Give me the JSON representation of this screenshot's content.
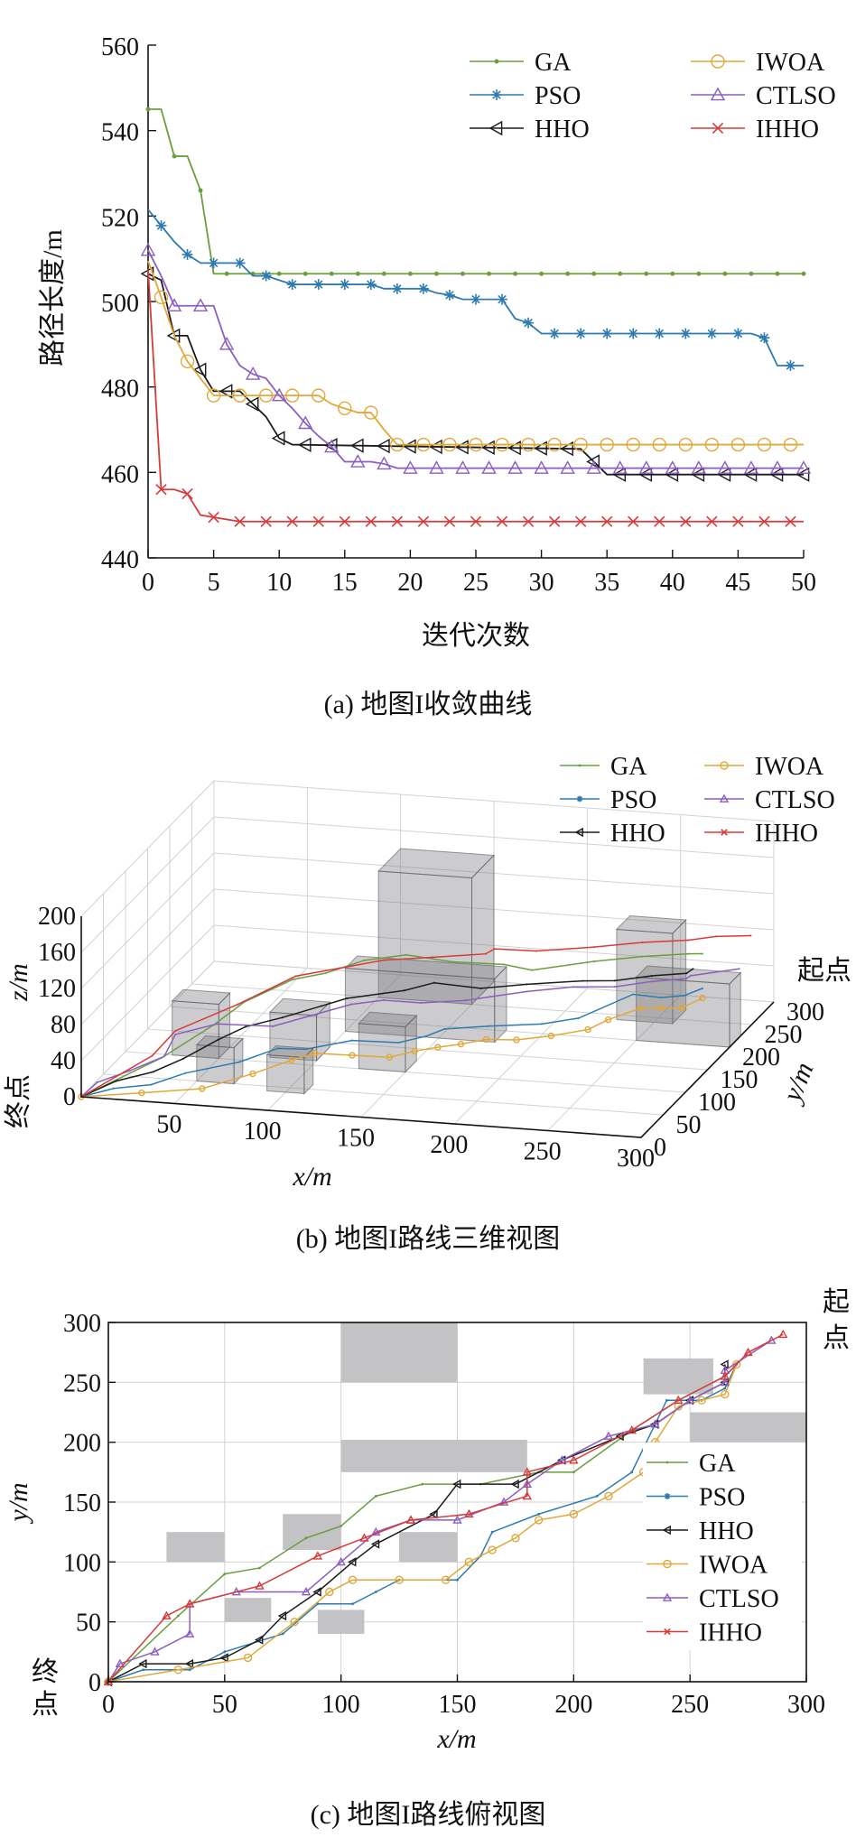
{
  "legend": {
    "labels": [
      "GA",
      "PSO",
      "HHO",
      "IWOA",
      "CTLSO",
      "IHHO"
    ],
    "colors": [
      "#6a9e3f",
      "#2e7bb0",
      "#1c1c1c",
      "#e0a83a",
      "#8b5fbf",
      "#d83a3a"
    ],
    "markers": [
      "dot",
      "asterisk",
      "triangle-left",
      "circle",
      "triangle-up",
      "cross"
    ]
  },
  "captions": {
    "a": "(a) 地图I收敛曲线",
    "b": "(b) 地图I路线三维视图",
    "c": "(c) 地图I路线俯视图"
  },
  "annotations": {
    "start": "起点",
    "end": "终点"
  },
  "chart_data": [
    {
      "type": "line",
      "ylabel": "路径长度/m",
      "xlabel": "迭代次数",
      "xlim": [
        0,
        50
      ],
      "ylim": [
        440,
        560
      ],
      "xticks": [
        0,
        5,
        10,
        15,
        20,
        25,
        30,
        35,
        40,
        45,
        50
      ],
      "yticks": [
        440,
        460,
        480,
        500,
        520,
        540,
        560
      ],
      "grid": false,
      "legend_position": "top-right",
      "series": [
        {
          "name": "GA",
          "x": [
            0,
            1,
            2,
            3,
            4,
            5,
            50
          ],
          "y": [
            545,
            545,
            534,
            534,
            526,
            506.5,
            506.5
          ]
        },
        {
          "name": "PSO",
          "x": [
            0,
            2,
            3,
            4,
            5,
            7,
            8,
            9,
            10,
            11,
            13,
            15,
            17,
            18,
            19,
            21,
            22,
            23,
            24,
            27,
            28,
            29,
            30,
            31,
            46,
            47,
            48,
            49,
            50
          ],
          "y": [
            521.5,
            514,
            511,
            509,
            509,
            509,
            506,
            506,
            505,
            504,
            504,
            504,
            504,
            503,
            503,
            503,
            502,
            501.5,
            500.5,
            500.5,
            496,
            495,
            492.5,
            492.5,
            492.5,
            491.5,
            485,
            485,
            485
          ]
        },
        {
          "name": "HHO",
          "x": [
            0,
            1,
            2,
            3,
            4,
            5,
            7,
            8,
            9,
            10,
            11,
            33,
            34,
            35,
            50
          ],
          "y": [
            506.5,
            505,
            492,
            492,
            484,
            479,
            479,
            476,
            473,
            468,
            466.5,
            465.5,
            462.5,
            459.5,
            459.5
          ]
        },
        {
          "name": "IWOA",
          "x": [
            0,
            1,
            2,
            3,
            4,
            5,
            13,
            14,
            15,
            16,
            17,
            18,
            19,
            50
          ],
          "y": [
            509.5,
            501,
            492,
            486,
            482,
            478,
            478,
            476,
            475,
            474,
            474,
            470,
            466.5,
            466.5
          ]
        },
        {
          "name": "CTLSO",
          "x": [
            0,
            1,
            2,
            3,
            4,
            5,
            6,
            7,
            8,
            9,
            10,
            11,
            12,
            13,
            14,
            15,
            17,
            18,
            19,
            20,
            50
          ],
          "y": [
            512,
            506,
            499,
            499,
            499,
            499,
            490,
            485,
            483,
            482,
            478,
            475,
            471.5,
            468.5,
            466,
            462.5,
            462.5,
            462,
            461,
            461,
            461
          ]
        },
        {
          "name": "IHHO",
          "x": [
            0,
            1,
            2,
            3,
            4,
            5,
            7,
            50
          ],
          "y": [
            507.5,
            456,
            456,
            455,
            450,
            449.5,
            448.5,
            448.5
          ]
        }
      ]
    },
    {
      "type": "line",
      "xlabel": "x/m",
      "ylabel": "y/m",
      "zlabel": "z/m",
      "xticks": [
        50,
        100,
        150,
        200,
        250,
        300
      ],
      "yticks": [
        0,
        50,
        100,
        150,
        200,
        250,
        300
      ],
      "zticks": [
        0,
        40,
        80,
        120,
        160,
        200
      ],
      "grid": true,
      "legend_position": "top-right"
    },
    {
      "type": "line",
      "xlabel": "x/m",
      "ylabel": "y/m",
      "xlim": [
        0,
        300
      ],
      "ylim": [
        0,
        300
      ],
      "xticks": [
        0,
        50,
        100,
        150,
        200,
        250,
        300
      ],
      "yticks": [
        0,
        50,
        100,
        150,
        200,
        250,
        300
      ],
      "grid": true,
      "legend_position": "right",
      "obstacles": [
        [
          100,
          250,
          150,
          300
        ],
        [
          230,
          240,
          260,
          270
        ],
        [
          250,
          200,
          300,
          225
        ],
        [
          100,
          175,
          180,
          202
        ],
        [
          25,
          100,
          50,
          125
        ],
        [
          75,
          110,
          100,
          140
        ],
        [
          125,
          100,
          150,
          125
        ],
        [
          50,
          50,
          70,
          70
        ],
        [
          90,
          40,
          110,
          60
        ]
      ],
      "series": [
        {
          "name": "GA",
          "points": [
            [
              0,
              0
            ],
            [
              30,
              55
            ],
            [
              50,
              90
            ],
            [
              65,
              95
            ],
            [
              85,
              120
            ],
            [
              100,
              130
            ],
            [
              115,
              155
            ],
            [
              135,
              165
            ],
            [
              160,
              165
            ],
            [
              185,
              175
            ],
            [
              200,
              175
            ],
            [
              225,
              210
            ],
            [
              245,
              235
            ],
            [
              265,
              255
            ],
            [
              270,
              265
            ]
          ]
        },
        {
          "name": "PSO",
          "points": [
            [
              0,
              0
            ],
            [
              15,
              10
            ],
            [
              35,
              10
            ],
            [
              50,
              25
            ],
            [
              75,
              40
            ],
            [
              90,
              65
            ],
            [
              105,
              65
            ],
            [
              115,
              75
            ],
            [
              125,
              85
            ],
            [
              150,
              85
            ],
            [
              160,
              105
            ],
            [
              165,
              125
            ],
            [
              185,
              140
            ],
            [
              210,
              155
            ],
            [
              225,
              175
            ],
            [
              240,
              235
            ],
            [
              255,
              235
            ],
            [
              265,
              245
            ],
            [
              270,
              265
            ]
          ]
        },
        {
          "name": "HHO",
          "points": [
            [
              0,
              0
            ],
            [
              15,
              15
            ],
            [
              35,
              15
            ],
            [
              50,
              20
            ],
            [
              65,
              35
            ],
            [
              75,
              55
            ],
            [
              90,
              75
            ],
            [
              105,
              100
            ],
            [
              115,
              115
            ],
            [
              140,
              140
            ],
            [
              150,
              165
            ],
            [
              175,
              165
            ],
            [
              195,
              185
            ],
            [
              220,
              205
            ],
            [
              235,
              215
            ],
            [
              250,
              235
            ],
            [
              265,
              250
            ],
            [
              265,
              265
            ]
          ]
        },
        {
          "name": "IWOA",
          "points": [
            [
              0,
              0
            ],
            [
              30,
              10
            ],
            [
              60,
              20
            ],
            [
              80,
              50
            ],
            [
              95,
              75
            ],
            [
              105,
              85
            ],
            [
              125,
              85
            ],
            [
              145,
              85
            ],
            [
              155,
              100
            ],
            [
              165,
              110
            ],
            [
              175,
              120
            ],
            [
              185,
              135
            ],
            [
              200,
              140
            ],
            [
              215,
              155
            ],
            [
              230,
              175
            ],
            [
              235,
              200
            ],
            [
              245,
              230
            ],
            [
              255,
              235
            ],
            [
              265,
              240
            ],
            [
              270,
              265
            ]
          ]
        },
        {
          "name": "CTLSO",
          "points": [
            [
              0,
              0
            ],
            [
              5,
              15
            ],
            [
              20,
              25
            ],
            [
              35,
              40
            ],
            [
              35,
              65
            ],
            [
              55,
              75
            ],
            [
              85,
              75
            ],
            [
              100,
              100
            ],
            [
              115,
              125
            ],
            [
              130,
              135
            ],
            [
              150,
              135
            ],
            [
              170,
              150
            ],
            [
              180,
              165
            ],
            [
              195,
              185
            ],
            [
              215,
              205
            ],
            [
              235,
              215
            ],
            [
              250,
              235
            ],
            [
              265,
              250
            ],
            [
              265,
              260
            ],
            [
              285,
              285
            ]
          ]
        },
        {
          "name": "IHHO",
          "points": [
            [
              0,
              0
            ],
            [
              25,
              55
            ],
            [
              35,
              65
            ],
            [
              65,
              80
            ],
            [
              90,
              105
            ],
            [
              110,
              120
            ],
            [
              130,
              135
            ],
            [
              155,
              140
            ],
            [
              180,
              155
            ],
            [
              180,
              175
            ],
            [
              200,
              185
            ],
            [
              225,
              210
            ],
            [
              245,
              235
            ],
            [
              265,
              255
            ],
            [
              275,
              275
            ],
            [
              290,
              290
            ]
          ]
        }
      ]
    }
  ]
}
